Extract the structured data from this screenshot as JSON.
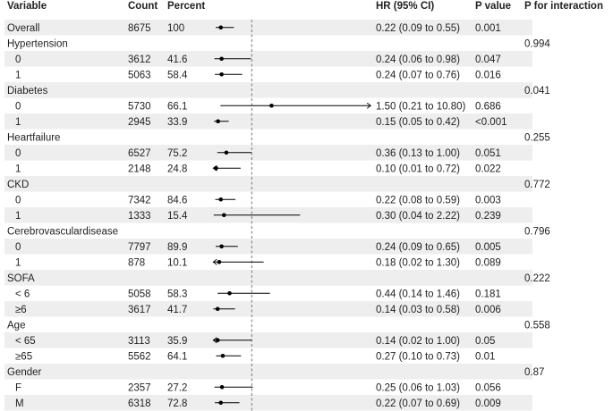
{
  "chart_data": {
    "type": "forest",
    "headers": {
      "variable": "Variable",
      "count": "Count",
      "percent": "Percent",
      "hr": "HR (95% CI)",
      "pvalue": "P value",
      "pint": "P for interaction"
    },
    "x_axis": {
      "ticks": [
        1,
        2,
        3,
        4
      ],
      "reference_line": 1,
      "range": [
        0,
        4
      ]
    },
    "rows": [
      {
        "type": "data",
        "label": "Overall",
        "count": "8675",
        "percent": "100",
        "hr": 0.22,
        "lo": 0.09,
        "hi": 0.55,
        "hr_text": "0.22 (0.09 to 0.55)",
        "p": "0.001",
        "shaded": true
      },
      {
        "type": "group",
        "label": "Hypertension",
        "pint": "0.994",
        "shaded": false
      },
      {
        "type": "data",
        "label": "0",
        "count": "3612",
        "percent": "41.6",
        "hr": 0.24,
        "lo": 0.06,
        "hi": 0.98,
        "hr_text": "0.24 (0.06 to 0.98)",
        "p": "0.047",
        "shaded": true
      },
      {
        "type": "data",
        "label": "1",
        "count": "5063",
        "percent": "58.4",
        "hr": 0.24,
        "lo": 0.07,
        "hi": 0.76,
        "hr_text": "0.24 (0.07 to 0.76)",
        "p": "0.016",
        "shaded": false
      },
      {
        "type": "group",
        "label": "Diabetes",
        "pint": "0.041",
        "shaded": true
      },
      {
        "type": "data",
        "label": "0",
        "count": "5730",
        "percent": "66.1",
        "hr": 1.5,
        "lo": 0.21,
        "hi": 10.8,
        "hr_text": "1.50 (0.21 to 10.80)",
        "p": "0.686",
        "shaded": false
      },
      {
        "type": "data",
        "label": "1",
        "count": "2945",
        "percent": "33.9",
        "hr": 0.15,
        "lo": 0.05,
        "hi": 0.42,
        "hr_text": "0.15 (0.05 to 0.42)",
        "p": "<0.001",
        "shaded": true
      },
      {
        "type": "group",
        "label": "Heartfailure",
        "pint": "0.255",
        "shaded": false
      },
      {
        "type": "data",
        "label": "0",
        "count": "6527",
        "percent": "75.2",
        "hr": 0.36,
        "lo": 0.13,
        "hi": 1.0,
        "hr_text": "0.36 (0.13 to 1.00)",
        "p": "0.051",
        "shaded": true
      },
      {
        "type": "data",
        "label": "1",
        "count": "2148",
        "percent": "24.8",
        "hr": 0.1,
        "lo": 0.01,
        "hi": 0.72,
        "hr_text": "0.10 (0.01 to 0.72)",
        "p": "0.022",
        "shaded": false
      },
      {
        "type": "group",
        "label": "CKD",
        "pint": "0.772",
        "shaded": true
      },
      {
        "type": "data",
        "label": "0",
        "count": "7342",
        "percent": "84.6",
        "hr": 0.22,
        "lo": 0.08,
        "hi": 0.59,
        "hr_text": "0.22 (0.08 to 0.59)",
        "p": "0.003",
        "shaded": false
      },
      {
        "type": "data",
        "label": "1",
        "count": "1333",
        "percent": "15.4",
        "hr": 0.3,
        "lo": 0.04,
        "hi": 2.22,
        "hr_text": "0.30 (0.04 to 2.22)",
        "p": "0.239",
        "shaded": true
      },
      {
        "type": "group",
        "label": "Cerebrovasculardisease",
        "pint": "0.796",
        "shaded": false
      },
      {
        "type": "data",
        "label": "0",
        "count": "7797",
        "percent": "89.9",
        "hr": 0.24,
        "lo": 0.09,
        "hi": 0.65,
        "hr_text": "0.24 (0.09 to 0.65)",
        "p": "0.005",
        "shaded": true
      },
      {
        "type": "data",
        "label": "1",
        "count": "878",
        "percent": "10.1",
        "hr": 0.18,
        "lo": 0.02,
        "hi": 1.3,
        "hr_text": "0.18 (0.02 to 1.30)",
        "p": "0.089",
        "shaded": false
      },
      {
        "type": "group",
        "label": "SOFA",
        "pint": "0.222",
        "shaded": true
      },
      {
        "type": "data",
        "label": "< 6",
        "count": "5058",
        "percent": "58.3",
        "hr": 0.44,
        "lo": 0.14,
        "hi": 1.46,
        "hr_text": "0.44 (0.14 to 1.46)",
        "p": "0.181",
        "shaded": false
      },
      {
        "type": "data",
        "label": "≥6",
        "count": "3617",
        "percent": "41.7",
        "hr": 0.14,
        "lo": 0.03,
        "hi": 0.58,
        "hr_text": "0.14 (0.03 to 0.58)",
        "p": "0.006",
        "shaded": true
      },
      {
        "type": "group",
        "label": "Age",
        "pint": "0.558",
        "shaded": false
      },
      {
        "type": "data",
        "label": "< 65",
        "count": "3113",
        "percent": "35.9",
        "hr": 0.14,
        "lo": 0.02,
        "hi": 1.0,
        "hr_text": "0.14 (0.02 to 1.00)",
        "p": "0.05",
        "shaded": true
      },
      {
        "type": "data",
        "label": "≥65",
        "count": "5562",
        "percent": "64.1",
        "hr": 0.27,
        "lo": 0.1,
        "hi": 0.73,
        "hr_text": "0.27 (0.10 to 0.73)",
        "p": "0.01",
        "shaded": false
      },
      {
        "type": "group",
        "label": "Gender",
        "pint": "0.87",
        "shaded": true
      },
      {
        "type": "data",
        "label": "F",
        "count": "2357",
        "percent": "27.2",
        "hr": 0.25,
        "lo": 0.06,
        "hi": 1.03,
        "hr_text": "0.25 (0.06 to 1.03)",
        "p": "0.056",
        "shaded": false
      },
      {
        "type": "data",
        "label": "M",
        "count": "6318",
        "percent": "72.8",
        "hr": 0.22,
        "lo": 0.07,
        "hi": 0.69,
        "hr_text": "0.22 (0.07 to 0.69)",
        "p": "0.009",
        "shaded": true
      }
    ],
    "colors": {
      "shade": "#eeeeee",
      "line": "#000000",
      "text": "#222222",
      "refline": "#666666"
    }
  }
}
